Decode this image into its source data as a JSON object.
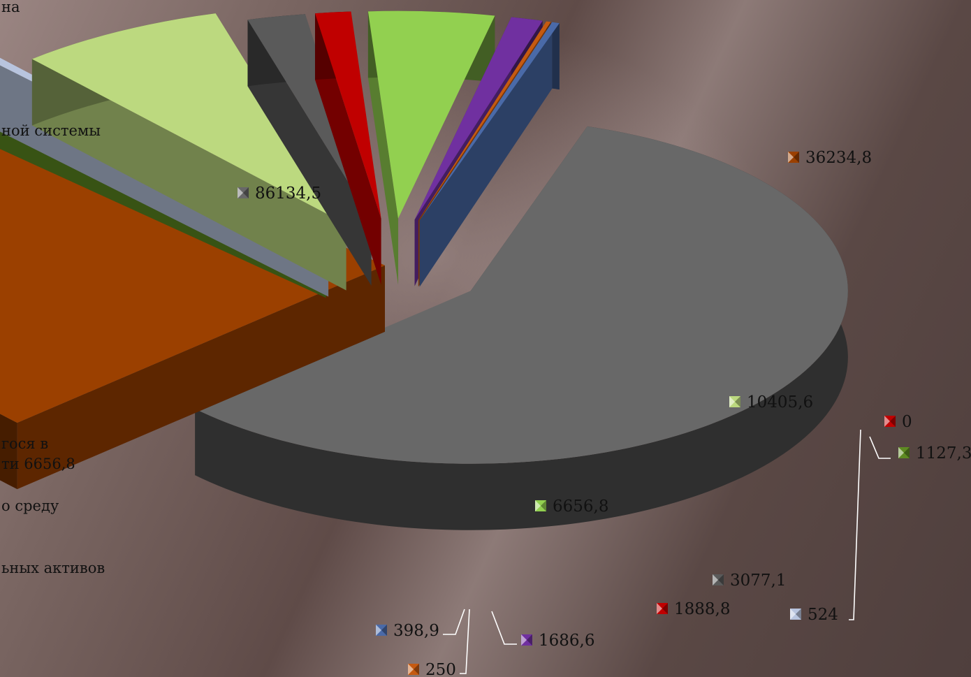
{
  "chart_data": {
    "type": "pie",
    "three_d": true,
    "exploded": true,
    "legend": "left (cropped)",
    "values": [
      86134.5,
      36234.8,
      0,
      1127.3,
      524,
      10405.6,
      3077.1,
      1888.8,
      6656.8,
      1686.6,
      250,
      398.9
    ],
    "data_labels": [
      "86134,5",
      "36234,8",
      "0",
      "1127,3",
      "524",
      "10405,6",
      "3077,1",
      "1888,8",
      "6656,8",
      "1686,6",
      "250",
      "398,9"
    ],
    "colors": [
      "#686868",
      "#9b4000",
      "#c00000",
      "#5e8a22",
      "#b8c4de",
      "#bcd97f",
      "#5a5a5a",
      "#c00000",
      "#92d050",
      "#7030a0",
      "#c55a11",
      "#4a6aa8"
    ],
    "legend_fragments": [
      "на",
      "ной системы",
      "гося в",
      "ти 6656,8",
      "о среду",
      "ьных активов"
    ]
  }
}
